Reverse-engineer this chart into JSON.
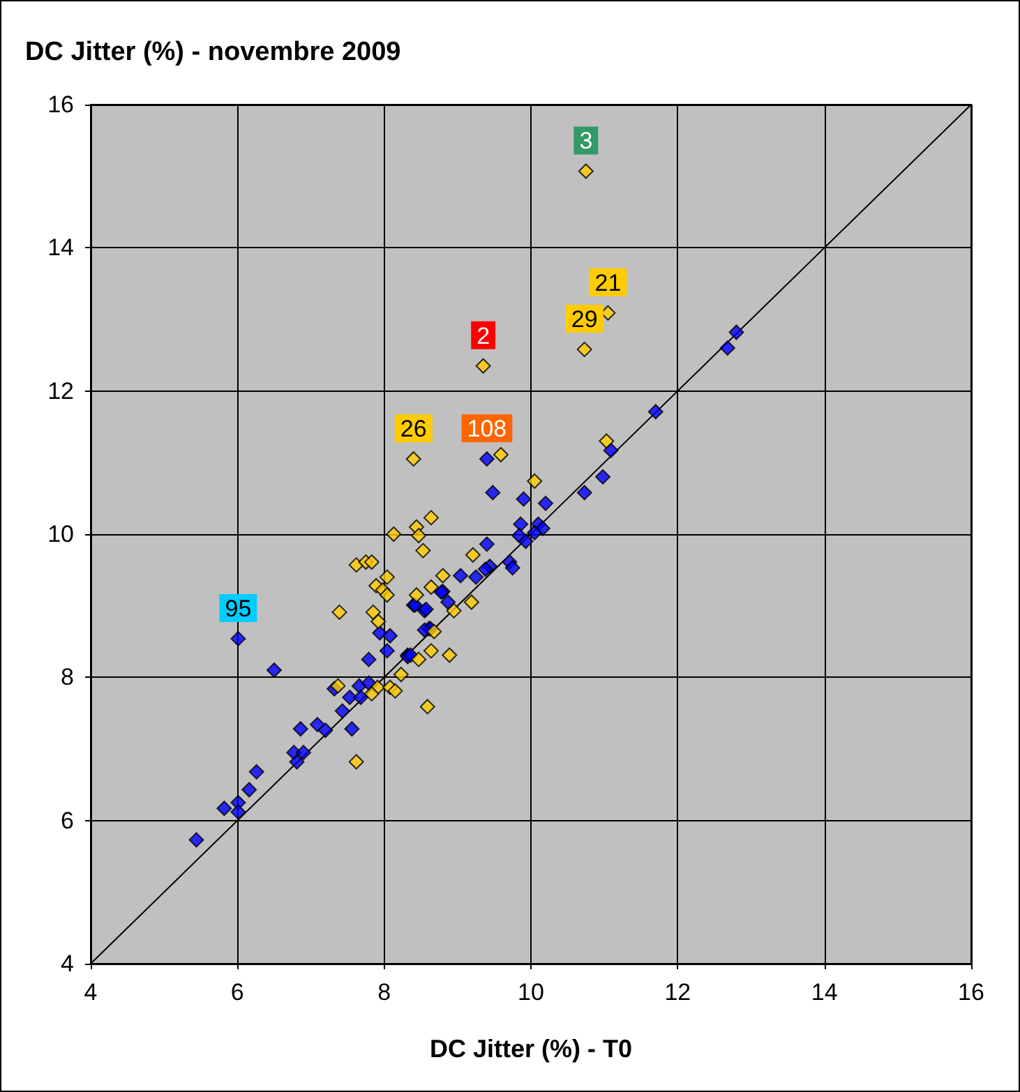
{
  "chart_data": {
    "type": "scatter",
    "title": "DC Jitter (%) - novembre 2009",
    "xlabel": "DC Jitter (%) - T0",
    "xlim": [
      4,
      16
    ],
    "ylim": [
      4,
      16
    ],
    "xticks": [
      4,
      6,
      8,
      10,
      12,
      14,
      16
    ],
    "yticks": [
      4,
      6,
      8,
      10,
      12,
      14,
      16
    ],
    "grid": true,
    "marker": "diamond",
    "series": [
      {
        "color": "#0000ff",
        "x": [
          6.01,
          6.5,
          5.44,
          5.82,
          6.01,
          6.01,
          6.16,
          6.26,
          6.77,
          6.9,
          6.81,
          6.86,
          7.09,
          7.2,
          7.43,
          7.56,
          7.32,
          7.53,
          7.66,
          7.68,
          7.79,
          7.79,
          7.94,
          8.08,
          8.04,
          8.32,
          8.4,
          8.55,
          8.61,
          8.8,
          11.7,
          11.09,
          10.98,
          10.73,
          10.2,
          9.9,
          9.4,
          9.48,
          9.86,
          10.1,
          10.16,
          9.84,
          9.93,
          10.05,
          9.4,
          9.44,
          9.71,
          9.75,
          9.38,
          9.25,
          9.04,
          8.78,
          8.87,
          8.57,
          8.42,
          8.63,
          8.55,
          8.32,
          8.36,
          12.68,
          12.8
        ],
        "values": [
          8.54,
          8.1,
          5.73,
          6.17,
          6.25,
          6.12,
          6.43,
          6.68,
          6.95,
          6.95,
          6.82,
          7.28,
          7.34,
          7.26,
          7.53,
          7.28,
          7.84,
          7.72,
          7.88,
          7.72,
          7.92,
          8.25,
          8.62,
          8.58,
          8.37,
          8.31,
          9.01,
          8.93,
          8.68,
          9.2,
          11.71,
          11.17,
          10.8,
          10.58,
          10.43,
          10.49,
          11.05,
          10.58,
          10.14,
          10.14,
          10.08,
          9.98,
          9.9,
          10.02,
          9.86,
          9.55,
          9.61,
          9.53,
          9.51,
          9.4,
          9.42,
          9.19,
          9.05,
          8.95,
          9.01,
          8.68,
          8.66,
          8.29,
          8.31,
          12.6,
          12.82
        ]
      },
      {
        "color": "#ffcc00",
        "x": [
          8.13,
          8.44,
          8.64,
          8.47,
          8.53,
          7.62,
          7.75,
          7.83,
          8.04,
          7.89,
          7.98,
          8.04,
          7.39,
          7.85,
          7.92,
          8.44,
          8.64,
          8.8,
          8.64,
          8.47,
          8.23,
          7.37,
          7.91,
          8.08,
          8.15,
          7.83,
          8.59,
          7.62,
          11.03,
          10.05,
          9.59,
          8.4,
          9.21,
          9.19,
          8.95,
          8.89,
          8.68,
          10.75,
          11.05,
          10.73,
          9.35
        ],
        "values": [
          10.0,
          10.1,
          10.23,
          9.98,
          9.77,
          9.57,
          9.61,
          9.61,
          9.4,
          9.28,
          9.22,
          9.15,
          8.91,
          8.91,
          8.78,
          9.15,
          9.26,
          9.42,
          8.37,
          8.25,
          8.04,
          7.88,
          7.86,
          7.86,
          7.81,
          7.77,
          7.59,
          6.82,
          11.3,
          10.74,
          11.11,
          11.05,
          9.71,
          9.05,
          8.93,
          8.31,
          8.64,
          15.07,
          13.09,
          12.58,
          12.35
        ]
      },
      {
        "type": "line",
        "color": "#000000",
        "marker": "none",
        "x": [
          4,
          16
        ],
        "values": [
          4,
          16
        ]
      }
    ],
    "annotations": [
      {
        "text": "3",
        "x": 10.75,
        "y": 15.07
      },
      {
        "text": "21",
        "x": 11.05,
        "y": 13.09
      },
      {
        "text": "29",
        "x": 10.73,
        "y": 12.58
      },
      {
        "text": "2",
        "x": 9.35,
        "y": 12.35
      },
      {
        "text": "26",
        "x": 8.4,
        "y": 11.05
      },
      {
        "text": "108",
        "x": 9.4,
        "y": 11.05
      },
      {
        "text": "95",
        "x": 6.01,
        "y": 8.54
      }
    ]
  }
}
